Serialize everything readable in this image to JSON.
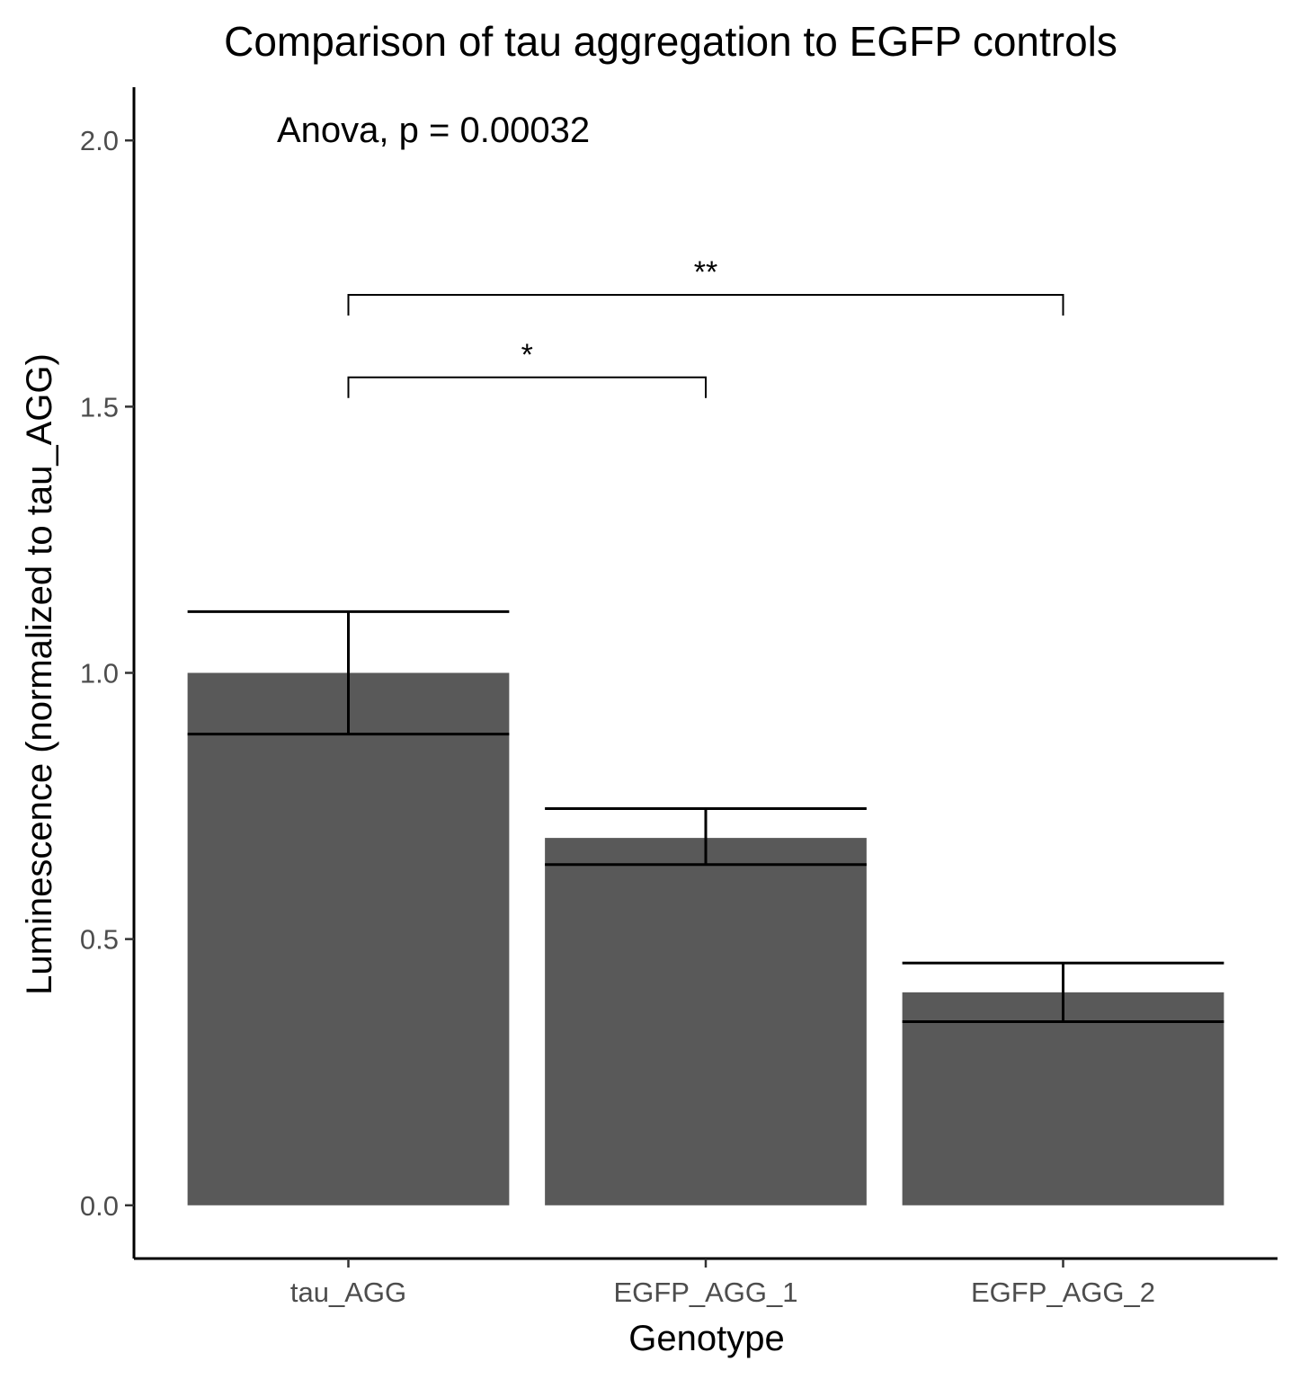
{
  "chart_data": {
    "type": "bar",
    "title": "Comparison of tau aggregation to EGFP controls",
    "xlabel": "Genotype",
    "ylabel": "Luminescence (normalized to tau_AGG)",
    "categories": [
      "tau_AGG",
      "EGFP_AGG_1",
      "EGFP_AGG_2"
    ],
    "values": [
      1.0,
      0.69,
      0.4
    ],
    "error_bars": [
      {
        "low": 0.885,
        "high": 1.115
      },
      {
        "low": 0.64,
        "high": 0.745
      },
      {
        "low": 0.345,
        "high": 0.455
      }
    ],
    "ylim": [
      -0.1,
      2.1
    ],
    "yticks": [
      0.0,
      0.5,
      1.0,
      1.5,
      2.0
    ],
    "ytick_labels": [
      "0.0",
      "0.5",
      "1.0",
      "1.5",
      "2.0"
    ],
    "annotation": "Anova, p = 0.00032",
    "comparisons": [
      {
        "from": "tau_AGG",
        "to": "EGFP_AGG_1",
        "label": "*",
        "y": 1.555
      },
      {
        "from": "tau_AGG",
        "to": "EGFP_AGG_2",
        "label": "**",
        "y": 1.71
      }
    ],
    "bar_color": "#595959",
    "grid": false,
    "legend": "none"
  }
}
